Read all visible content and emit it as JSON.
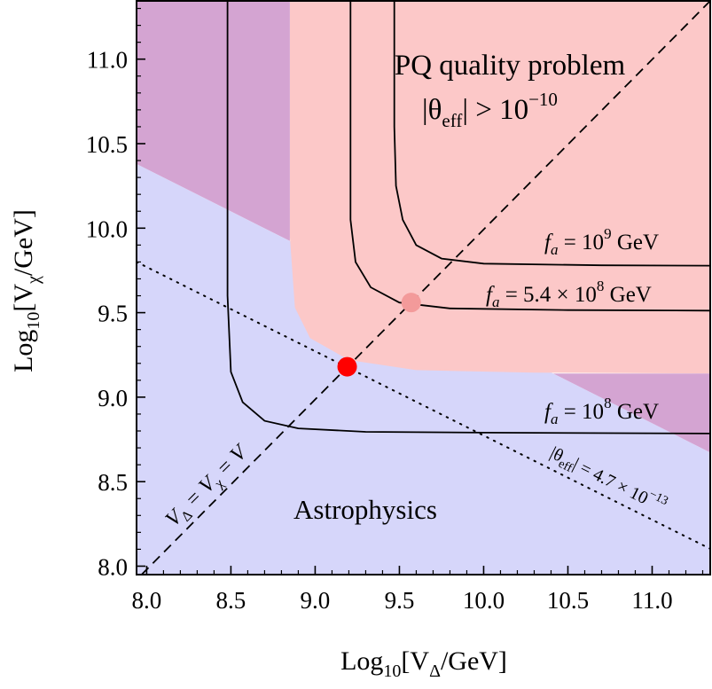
{
  "chart_data": {
    "type": "line",
    "title": "",
    "xlabel": {
      "pre": "Log",
      "sub": "10",
      "mid": "[V",
      "var_sub": "Δ",
      "post": "/GeV]"
    },
    "ylabel": {
      "pre": "Log",
      "sub": "10",
      "mid": "[V",
      "var_sub": "χ",
      "post": "/GeV]"
    },
    "xlim": [
      7.94,
      11.35
    ],
    "ylim": [
      7.95,
      11.35
    ],
    "x_ticks": [
      "8.0",
      "8.5",
      "9.0",
      "9.5",
      "10.0",
      "10.5",
      "11.0"
    ],
    "y_ticks": [
      "8.0",
      "8.5",
      "9.0",
      "9.5",
      "10.0",
      "10.5",
      "11.0"
    ],
    "grid": false,
    "colors": {
      "astro_fill": "#d6d6fa",
      "pq_fill": "#fcc8c8",
      "overlap_fill": "#d4a4d2",
      "curve": "#000000",
      "point_main": "#ff0000",
      "point_secondary": "#f39a9a",
      "pq_text": "#ff0000",
      "astro_text": "#1010e0"
    },
    "regions": [
      {
        "name": "PQ quality problem",
        "label_line1": "PQ quality problem",
        "label_line2": {
          "pre": "|θ",
          "sub": "eff",
          "mid": "| > 10",
          "sup": "−10"
        },
        "boundary": [
          [
            8.85,
            11.35
          ],
          [
            8.85,
            9.95
          ],
          [
            8.88,
            9.53
          ],
          [
            8.97,
            9.35
          ],
          [
            9.2,
            9.22
          ],
          [
            9.6,
            9.16
          ],
          [
            10.3,
            9.145
          ],
          [
            11.35,
            9.14
          ]
        ]
      },
      {
        "name": "Astrophysics",
        "label": "Astrophysics",
        "boundary": [
          [
            7.94,
            10.38
          ],
          [
            11.35,
            8.67
          ]
        ]
      }
    ],
    "series": [
      {
        "name": "f_a = 10^8 GeV",
        "label": {
          "pre": "f",
          "sub": "a",
          "mid": " = 10",
          "sup": "8",
          "post": " GeV"
        },
        "points": [
          [
            8.48,
            11.35
          ],
          [
            8.48,
            10.5
          ],
          [
            8.48,
            9.6
          ],
          [
            8.5,
            9.15
          ],
          [
            8.57,
            8.97
          ],
          [
            8.7,
            8.86
          ],
          [
            8.9,
            8.815
          ],
          [
            9.3,
            8.795
          ],
          [
            10.0,
            8.79
          ],
          [
            11.35,
            8.785
          ]
        ]
      },
      {
        "name": "f_a = 5.4 × 10^8 GeV",
        "label": {
          "pre": "f",
          "sub": "a",
          "mid": " = 5.4 × 10",
          "sup": "8",
          "post": " GeV"
        },
        "points": [
          [
            9.21,
            11.35
          ],
          [
            9.21,
            10.5
          ],
          [
            9.21,
            10.05
          ],
          [
            9.24,
            9.8
          ],
          [
            9.33,
            9.65
          ],
          [
            9.5,
            9.56
          ],
          [
            9.8,
            9.525
          ],
          [
            10.5,
            9.515
          ],
          [
            11.35,
            9.512
          ]
        ]
      },
      {
        "name": "f_a = 10^9 GeV",
        "label": {
          "pre": "f",
          "sub": "a",
          "mid": " = 10",
          "sup": "9",
          "post": " GeV"
        },
        "points": [
          [
            9.47,
            11.35
          ],
          [
            9.47,
            10.6
          ],
          [
            9.48,
            10.25
          ],
          [
            9.52,
            10.05
          ],
          [
            9.6,
            9.9
          ],
          [
            9.75,
            9.82
          ],
          [
            10.0,
            9.79
          ],
          [
            10.7,
            9.78
          ],
          [
            11.35,
            9.778
          ]
        ]
      }
    ],
    "lines": [
      {
        "name": "V_Δ = V_χ = V",
        "style": "dashed",
        "label": {
          "a": "V",
          "a_sub": "Δ",
          "b": " = V",
          "b_sub": "χ",
          "c": " = V"
        },
        "points": [
          [
            7.97,
            7.95
          ],
          [
            11.35,
            11.35
          ]
        ]
      },
      {
        "name": "|θ_eff| = 4.7 × 10^-13",
        "style": "dotted",
        "label": {
          "pre": "|θ",
          "sub": "eff",
          "mid": "| = 4.7 × 10",
          "sup": "−13"
        },
        "points": [
          [
            7.94,
            9.8
          ],
          [
            11.35,
            8.1
          ]
        ]
      }
    ],
    "points": [
      {
        "name": "benchmark-red",
        "x": 9.19,
        "y": 9.18,
        "color": "#ff0000"
      },
      {
        "name": "benchmark-pink",
        "x": 9.57,
        "y": 9.56,
        "color": "#f39a9a"
      }
    ]
  }
}
